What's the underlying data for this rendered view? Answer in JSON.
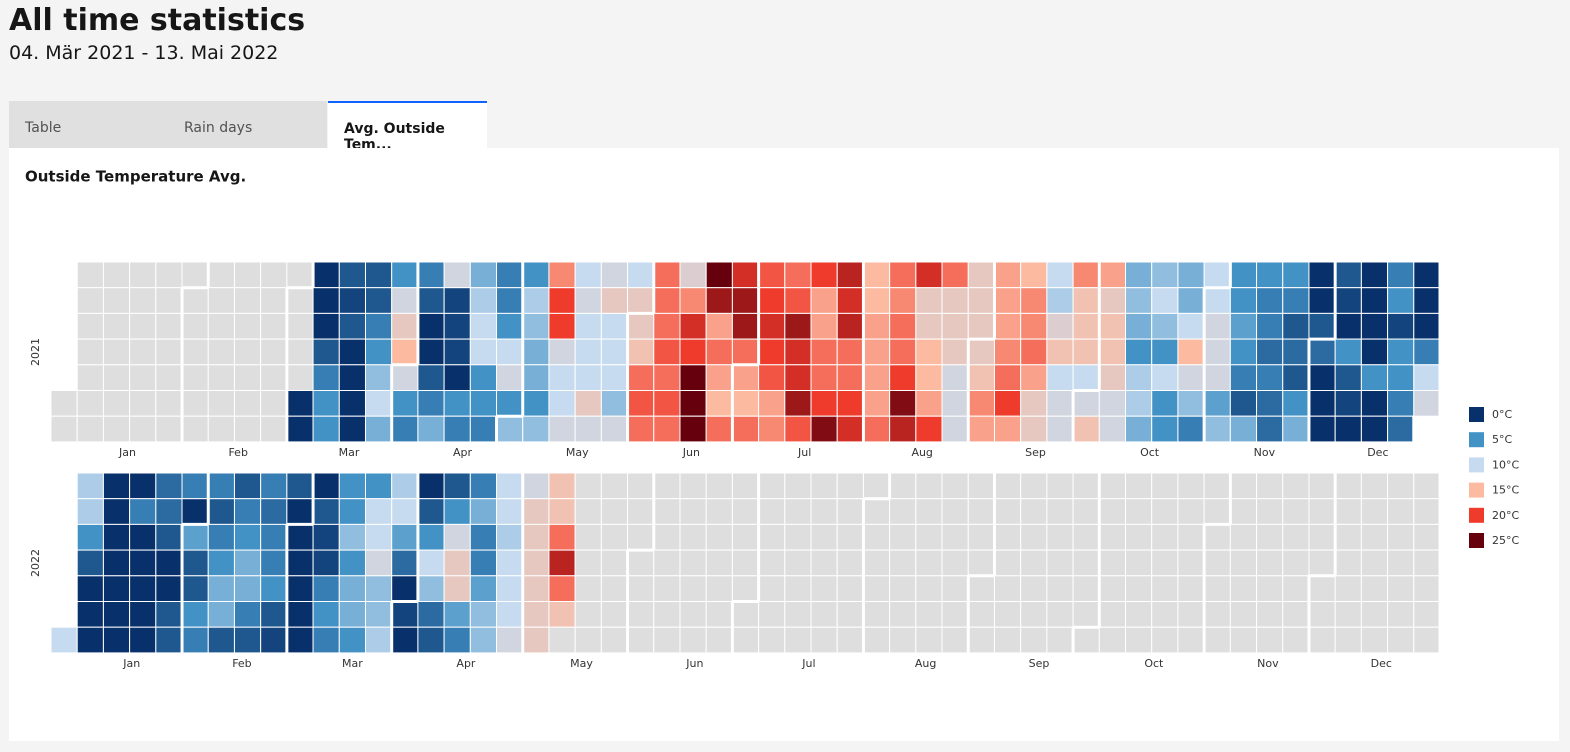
{
  "header": {
    "title": "All time statistics",
    "subtitle": "04. Mär 2021 - 13. Mai 2022"
  },
  "tabs": [
    "Table",
    "Rain days",
    "Avg. Outside Tem..."
  ],
  "chart_data": {
    "type": "calendar-heatmap",
    "title": "Outside Temperature Avg.",
    "legend": [
      {
        "value": 0,
        "label": "0°C",
        "color": "#08306b"
      },
      {
        "value": 5,
        "label": "5°C",
        "color": "#4292c6"
      },
      {
        "value": 10,
        "label": "10°C",
        "color": "#c6dbef"
      },
      {
        "value": 15,
        "label": "15°C",
        "color": "#fcbba1"
      },
      {
        "value": 20,
        "label": "20°C",
        "color": "#ef3b2c"
      },
      {
        "value": 25,
        "label": "25°C",
        "color": "#67000d"
      }
    ],
    "years": [
      {
        "year": "2021",
        "months": [
          "Jan",
          "Feb",
          "Mar",
          "Apr",
          "May",
          "Jun",
          "Jul",
          "Aug",
          "Sep",
          "Oct",
          "Nov",
          "Dec"
        ],
        "weeks": [
          [
            null,
            null
          ],
          [
            null,
            null,
            null,
            null,
            null,
            null,
            null
          ],
          [
            null,
            null,
            null,
            null,
            null,
            null,
            null
          ],
          [
            null,
            null,
            null,
            null,
            null,
            null,
            null
          ],
          [
            null,
            null,
            null,
            null,
            null,
            null,
            null
          ],
          [
            null,
            null,
            null,
            null,
            null,
            null,
            null
          ],
          [
            null,
            null,
            null,
            null,
            null,
            null,
            null
          ],
          [
            null,
            null,
            null,
            null,
            null,
            null,
            null
          ],
          [
            null,
            null,
            null,
            null,
            null,
            null,
            null
          ],
          [
            null,
            null,
            null,
            null,
            null,
            0,
            0
          ],
          [
            0,
            0,
            0,
            2,
            4,
            5,
            5
          ],
          [
            2,
            1,
            2,
            0,
            0,
            0,
            0
          ],
          [
            2,
            2,
            4,
            5,
            8,
            10,
            7
          ],
          [
            5,
            11,
            13,
            15,
            11,
            5,
            4
          ],
          [
            4,
            2,
            0,
            0,
            2,
            4,
            7
          ],
          [
            11,
            1,
            1,
            1,
            0,
            5,
            4
          ],
          [
            7,
            9,
            10,
            10,
            5,
            5,
            4
          ],
          [
            4,
            4,
            5,
            10,
            11,
            5,
            8
          ],
          [
            5,
            9,
            8,
            7,
            7,
            5,
            8
          ],
          [
            17,
            20,
            20,
            11,
            10,
            10,
            11
          ],
          [
            10,
            11,
            10,
            10,
            10,
            13,
            11
          ],
          [
            11,
            13,
            10,
            10,
            10,
            8,
            11
          ],
          [
            10,
            13,
            13,
            14,
            18,
            19,
            18
          ],
          [
            18,
            18,
            18,
            19,
            18,
            19,
            18
          ],
          [
            12,
            17,
            21,
            20,
            25,
            25,
            25
          ],
          [
            25,
            23,
            16,
            18,
            16,
            15,
            18
          ],
          [
            21,
            23,
            23,
            18,
            16,
            15,
            18
          ],
          [
            19,
            20,
            21,
            20,
            19,
            16,
            17
          ],
          [
            18,
            19,
            23,
            21,
            21,
            23,
            19
          ],
          [
            20,
            16,
            16,
            18,
            18,
            20,
            24
          ],
          [
            22,
            21,
            22,
            18,
            18,
            20,
            21
          ],
          [
            15,
            15,
            16,
            16,
            16,
            16,
            18
          ],
          [
            18,
            17,
            18,
            18,
            20,
            24,
            22
          ],
          [
            21,
            13,
            13,
            15,
            15,
            16,
            20
          ],
          [
            18,
            13,
            13,
            13,
            11,
            11,
            11
          ],
          [
            13,
            13,
            13,
            13,
            14,
            17,
            16
          ],
          [
            16,
            16,
            16,
            17,
            18,
            20,
            16
          ],
          [
            15,
            17,
            17,
            18,
            16,
            13,
            13
          ],
          [
            10,
            9,
            12,
            14,
            10,
            11,
            11
          ],
          [
            17,
            14,
            14,
            14,
            10,
            11,
            14
          ],
          [
            16,
            13,
            14,
            14,
            13,
            11,
            11
          ],
          [
            7,
            8,
            7,
            5,
            9,
            9,
            7
          ],
          [
            8,
            10,
            8,
            5,
            10,
            5,
            5
          ],
          [
            7,
            7,
            10,
            15,
            11,
            8,
            4
          ],
          [
            10,
            10,
            11,
            11,
            11,
            6,
            8
          ],
          [
            5,
            5,
            6,
            5,
            4,
            2,
            7
          ],
          [
            5,
            4,
            4,
            3,
            4,
            3,
            3
          ],
          [
            5,
            4,
            2,
            3,
            2,
            5,
            7
          ],
          [
            0,
            0,
            2,
            3,
            0,
            0,
            0
          ],
          [
            2,
            1,
            0,
            5,
            2,
            1,
            0
          ],
          [
            0,
            0,
            0,
            0,
            5,
            0,
            0
          ],
          [
            4,
            5,
            1,
            5,
            5,
            4,
            3
          ],
          [
            0,
            0,
            0,
            4,
            10,
            11
          ]
        ]
      },
      {
        "year": "2022",
        "months": [
          "Jan",
          "Feb",
          "Mar",
          "Apr",
          "May",
          "Jun",
          "Jul",
          "Aug",
          "Sep",
          "Oct",
          "Nov",
          "Dec"
        ],
        "weeks": [
          [
            10
          ],
          [
            9,
            9,
            5,
            2,
            0,
            0,
            0
          ],
          [
            0,
            0,
            0,
            0,
            0,
            0,
            0
          ],
          [
            0,
            4,
            0,
            0,
            0,
            0,
            0
          ],
          [
            3,
            3,
            2,
            0,
            0,
            2,
            2
          ],
          [
            4,
            0,
            6,
            2,
            2,
            5,
            4
          ],
          [
            4,
            2,
            4,
            5,
            7,
            7,
            2
          ],
          [
            2,
            4,
            5,
            7,
            7,
            4,
            2
          ],
          [
            4,
            3,
            4,
            4,
            5,
            2,
            1
          ],
          [
            2,
            0,
            0,
            0,
            0,
            0,
            0
          ],
          [
            0,
            2,
            1,
            1,
            4,
            5,
            4
          ],
          [
            5,
            5,
            8,
            5,
            7,
            7,
            5
          ],
          [
            5,
            10,
            10,
            11,
            8,
            8,
            9
          ],
          [
            9,
            10,
            6,
            3,
            0,
            1,
            0
          ],
          [
            0,
            2,
            5,
            10,
            8,
            3,
            2
          ],
          [
            2,
            5,
            11,
            13,
            13,
            6,
            4
          ],
          [
            4,
            7,
            4,
            4,
            6,
            8,
            8
          ],
          [
            10,
            10,
            9,
            10,
            10,
            10,
            11
          ],
          [
            11,
            13,
            13,
            13,
            13,
            13,
            13
          ],
          [
            14,
            14,
            18,
            22,
            18,
            14,
            null
          ],
          [
            null,
            null,
            null,
            null,
            null,
            null,
            null
          ],
          [
            null,
            null,
            null,
            null,
            null,
            null,
            null
          ],
          [
            null,
            null,
            null,
            null,
            null,
            null,
            null
          ],
          [
            null,
            null,
            null,
            null,
            null,
            null,
            null
          ],
          [
            null,
            null,
            null,
            null,
            null,
            null,
            null
          ],
          [
            null,
            null,
            null,
            null,
            null,
            null,
            null
          ],
          [
            null,
            null,
            null,
            null,
            null,
            null,
            null
          ],
          [
            null,
            null,
            null,
            null,
            null,
            null,
            null
          ],
          [
            null,
            null,
            null,
            null,
            null,
            null,
            null
          ],
          [
            null,
            null,
            null,
            null,
            null,
            null,
            null
          ],
          [
            null,
            null,
            null,
            null,
            null,
            null,
            null
          ],
          [
            null,
            null,
            null,
            null,
            null,
            null,
            null
          ],
          [
            null,
            null,
            null,
            null,
            null,
            null,
            null
          ],
          [
            null,
            null,
            null,
            null,
            null,
            null,
            null
          ],
          [
            null,
            null,
            null,
            null,
            null,
            null,
            null
          ],
          [
            null,
            null,
            null,
            null,
            null,
            null,
            null
          ],
          [
            null,
            null,
            null,
            null,
            null,
            null,
            null
          ],
          [
            null,
            null,
            null,
            null,
            null,
            null,
            null
          ],
          [
            null,
            null,
            null,
            null,
            null,
            null,
            null
          ],
          [
            null,
            null,
            null,
            null,
            null,
            null,
            null
          ],
          [
            null,
            null,
            null,
            null,
            null,
            null,
            null
          ],
          [
            null,
            null,
            null,
            null,
            null,
            null,
            null
          ],
          [
            null,
            null,
            null,
            null,
            null,
            null,
            null
          ],
          [
            null,
            null,
            null,
            null,
            null,
            null,
            null
          ],
          [
            null,
            null,
            null,
            null,
            null,
            null,
            null
          ],
          [
            null,
            null,
            null,
            null,
            null,
            null,
            null
          ],
          [
            null,
            null,
            null,
            null,
            null,
            null,
            null
          ],
          [
            null,
            null,
            null,
            null,
            null,
            null,
            null
          ],
          [
            null,
            null,
            null,
            null,
            null,
            null,
            null
          ],
          [
            null,
            null,
            null,
            null,
            null,
            null,
            null
          ],
          [
            null,
            null,
            null,
            null,
            null,
            null,
            null
          ],
          [
            null,
            null,
            null,
            null,
            null,
            null,
            null
          ],
          [
            null,
            null,
            null,
            null,
            null,
            null,
            null
          ]
        ]
      }
    ]
  }
}
